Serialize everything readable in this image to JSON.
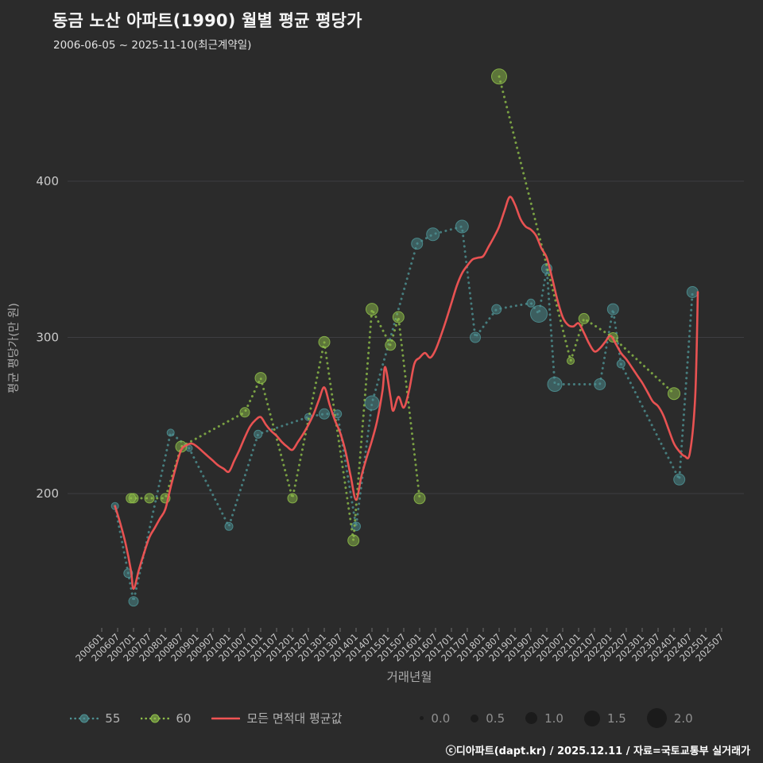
{
  "page": {
    "title": "동금 노산 아파트(1990) 월별 평균 평당가",
    "subtitle": "2006-06-05 ~ 2025-11-10(최근계약일)",
    "footer": "ⓒ디아파트(dapt.kr) / 2025.12.11 / 자료=국토교통부 실거래가"
  },
  "colors": {
    "background": "#2b2b2b",
    "grid": "#3e3e42",
    "tick_text": "#c9c9c9",
    "axis_title": "#ababab",
    "legend_text": "#b3b3b3",
    "size_legend_dot": "#1b1b1b",
    "series55": "#4e9294",
    "series60": "#8fbf4a",
    "avg": "#f25454"
  },
  "chart_data": {
    "type": "scatter",
    "title": "동금 노산 아파트(1990) 월별 평균 평당가",
    "xlabel": "거래년월",
    "ylabel": "평균 평당가(만 원)",
    "grid": true,
    "legend_position": "bottom",
    "y_ticks": [
      200,
      300,
      400
    ],
    "ylim": [
      115,
      485
    ],
    "x_tick_labels": [
      "200601",
      "200607",
      "200701",
      "200707",
      "200801",
      "200807",
      "200901",
      "200907",
      "201001",
      "201007",
      "201101",
      "201107",
      "201201",
      "201207",
      "201301",
      "201307",
      "201401",
      "201407",
      "201501",
      "201507",
      "201601",
      "201607",
      "201701",
      "201707",
      "201801",
      "201807",
      "201901",
      "201907",
      "202001",
      "202007",
      "202101",
      "202107",
      "202201",
      "202207",
      "202301",
      "202307",
      "202401",
      "202407",
      "202501",
      "202507"
    ],
    "size_legend": [
      "0.0",
      "0.5",
      "1.0",
      "1.5",
      "2.0"
    ],
    "series": [
      {
        "name": "55",
        "type": "scatter-dotted",
        "color": "#4e9294",
        "points": [
          [
            "200606",
            192,
            0.4
          ],
          [
            "200611",
            149,
            0.6
          ],
          [
            "200701",
            131,
            0.7
          ],
          [
            "200803",
            239,
            0.4
          ],
          [
            "200810",
            229,
            0.3
          ],
          [
            "201001",
            179,
            0.5
          ],
          [
            "201012",
            238,
            0.5
          ],
          [
            "201207",
            249,
            0.4
          ],
          [
            "201301",
            251,
            0.8
          ],
          [
            "201306",
            251,
            0.5
          ],
          [
            "201401",
            179,
            0.6
          ],
          [
            "201407",
            258,
            1.3
          ],
          [
            "201512",
            360,
            0.9
          ],
          [
            "201606",
            366,
            1.1
          ],
          [
            "201705",
            371,
            1.1
          ],
          [
            "201710",
            300,
            0.8
          ],
          [
            "201806",
            318,
            0.7
          ],
          [
            "201907",
            322,
            0.5
          ],
          [
            "201910",
            315,
            1.6
          ],
          [
            "202001",
            344,
            0.8
          ],
          [
            "202004",
            270,
            1.3
          ],
          [
            "202109",
            270,
            0.9
          ],
          [
            "202202",
            318,
            0.9
          ],
          [
            "202205",
            283,
            0.5
          ],
          [
            "202403",
            209,
            0.9
          ],
          [
            "202408",
            329,
            0.9
          ]
        ]
      },
      {
        "name": "60",
        "type": "scatter-dotted",
        "color": "#8fbf4a",
        "points": [
          [
            "200612",
            197,
            0.7
          ],
          [
            "200701",
            197,
            0.7
          ],
          [
            "200707",
            197,
            0.7
          ],
          [
            "200801",
            197,
            0.7
          ],
          [
            "200807",
            230,
            0.9
          ],
          [
            "201007",
            252,
            0.7
          ],
          [
            "201101",
            274,
            0.9
          ],
          [
            "201201",
            197,
            0.7
          ],
          [
            "201301",
            297,
            0.9
          ],
          [
            "201312",
            170,
            0.9
          ],
          [
            "201407",
            318,
            1.0
          ],
          [
            "201502",
            295,
            0.8
          ],
          [
            "201505",
            313,
            0.9
          ],
          [
            "201601",
            197,
            0.9
          ],
          [
            "201807",
            467,
            1.4
          ],
          [
            "202010",
            285,
            0.4
          ],
          [
            "202103",
            312,
            0.8
          ],
          [
            "202202",
            300,
            0.7
          ],
          [
            "202401",
            264,
            1.0
          ]
        ]
      },
      {
        "name": "모든 면적대 평균값",
        "type": "line",
        "color": "#f25454",
        "points": [
          [
            "200606",
            192
          ],
          [
            "200608",
            181
          ],
          [
            "200610",
            168
          ],
          [
            "200612",
            151
          ],
          [
            "200701",
            139
          ],
          [
            "200703",
            151
          ],
          [
            "200705",
            162
          ],
          [
            "200707",
            172
          ],
          [
            "200709",
            178
          ],
          [
            "200711",
            184
          ],
          [
            "200801",
            190
          ],
          [
            "200803",
            204
          ],
          [
            "200805",
            217
          ],
          [
            "200807",
            228
          ],
          [
            "200809",
            231
          ],
          [
            "200811",
            232
          ],
          [
            "200901",
            230
          ],
          [
            "200903",
            227
          ],
          [
            "200905",
            224
          ],
          [
            "200907",
            221
          ],
          [
            "200909",
            218
          ],
          [
            "200911",
            216
          ],
          [
            "201001",
            214
          ],
          [
            "201003",
            221
          ],
          [
            "201005",
            228
          ],
          [
            "201007",
            236
          ],
          [
            "201009",
            243
          ],
          [
            "201011",
            247
          ],
          [
            "201101",
            249
          ],
          [
            "201103",
            244
          ],
          [
            "201105",
            240
          ],
          [
            "201107",
            237
          ],
          [
            "201109",
            233
          ],
          [
            "201111",
            230
          ],
          [
            "201201",
            228
          ],
          [
            "201203",
            233
          ],
          [
            "201205",
            238
          ],
          [
            "201207",
            244
          ],
          [
            "201209",
            251
          ],
          [
            "201211",
            260
          ],
          [
            "201301",
            268
          ],
          [
            "201303",
            257
          ],
          [
            "201305",
            247
          ],
          [
            "201307",
            239
          ],
          [
            "201309",
            227
          ],
          [
            "201311",
            211
          ],
          [
            "201401",
            196
          ],
          [
            "201403",
            211
          ],
          [
            "201405",
            223
          ],
          [
            "201407",
            234
          ],
          [
            "201409",
            247
          ],
          [
            "201411",
            266
          ],
          [
            "201412",
            281
          ],
          [
            "201502",
            262
          ],
          [
            "201503",
            253
          ],
          [
            "201505",
            262
          ],
          [
            "201507",
            255
          ],
          [
            "201509",
            266
          ],
          [
            "201511",
            283
          ],
          [
            "201601",
            287
          ],
          [
            "201603",
            290
          ],
          [
            "201605",
            287
          ],
          [
            "201607",
            292
          ],
          [
            "201609",
            301
          ],
          [
            "201611",
            311
          ],
          [
            "201701",
            322
          ],
          [
            "201703",
            333
          ],
          [
            "201705",
            341
          ],
          [
            "201707",
            346
          ],
          [
            "201709",
            350
          ],
          [
            "201711",
            351
          ],
          [
            "201801",
            352
          ],
          [
            "201803",
            358
          ],
          [
            "201805",
            364
          ],
          [
            "201807",
            371
          ],
          [
            "201809",
            381
          ],
          [
            "201811",
            390
          ],
          [
            "201901",
            385
          ],
          [
            "201903",
            376
          ],
          [
            "201905",
            371
          ],
          [
            "201907",
            369
          ],
          [
            "201909",
            365
          ],
          [
            "201911",
            357
          ],
          [
            "202001",
            351
          ],
          [
            "202003",
            338
          ],
          [
            "202005",
            324
          ],
          [
            "202007",
            313
          ],
          [
            "202009",
            308
          ],
          [
            "202011",
            307
          ],
          [
            "202101",
            309
          ],
          [
            "202103",
            303
          ],
          [
            "202105",
            296
          ],
          [
            "202107",
            291
          ],
          [
            "202109",
            293
          ],
          [
            "202111",
            297
          ],
          [
            "202201",
            301
          ],
          [
            "202203",
            296
          ],
          [
            "202205",
            290
          ],
          [
            "202207",
            286
          ],
          [
            "202209",
            281
          ],
          [
            "202211",
            276
          ],
          [
            "202301",
            271
          ],
          [
            "202303",
            265
          ],
          [
            "202305",
            259
          ],
          [
            "202307",
            256
          ],
          [
            "202309",
            250
          ],
          [
            "202311",
            241
          ],
          [
            "202401",
            232
          ],
          [
            "202403",
            227
          ],
          [
            "202405",
            224
          ],
          [
            "202407",
            226
          ],
          [
            "202409",
            262
          ],
          [
            "202410",
            329
          ]
        ]
      }
    ]
  }
}
